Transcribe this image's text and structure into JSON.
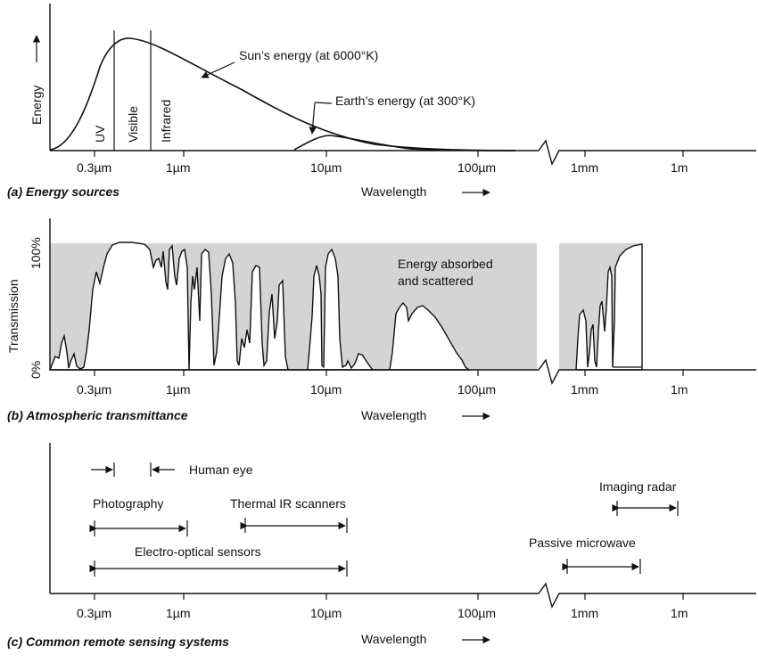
{
  "wavelength_label": "Wavelength",
  "tick_labels": [
    "0.3µm",
    "1µm",
    "10µm",
    "100µm",
    "1mm",
    "1m"
  ],
  "panel_a": {
    "caption": "(a) Energy sources",
    "y_label": "Energy",
    "regions": [
      "UV",
      "Visible",
      "Infrared"
    ],
    "sun_label": "Sun’s energy (at 6000°K)",
    "earth_label": "Earth’s energy (at 300°K)"
  },
  "panel_b": {
    "caption": "(b) Atmospheric transmittance",
    "y_label": "Transmission",
    "y_ticks": [
      "100%",
      "0%"
    ],
    "absorbed_line1": "Energy absorbed",
    "absorbed_line2": "and scattered"
  },
  "panel_c": {
    "caption": "(c) Common remote sensing systems",
    "systems": [
      {
        "name": "Human eye"
      },
      {
        "name": "Photography"
      },
      {
        "name": "Thermal IR scanners"
      },
      {
        "name": "Electro-optical sensors"
      },
      {
        "name": "Imaging radar"
      },
      {
        "name": "Passive microwave"
      }
    ]
  },
  "colors": {
    "absorbed_band": "#d4d4d4",
    "ink": "#111111"
  }
}
